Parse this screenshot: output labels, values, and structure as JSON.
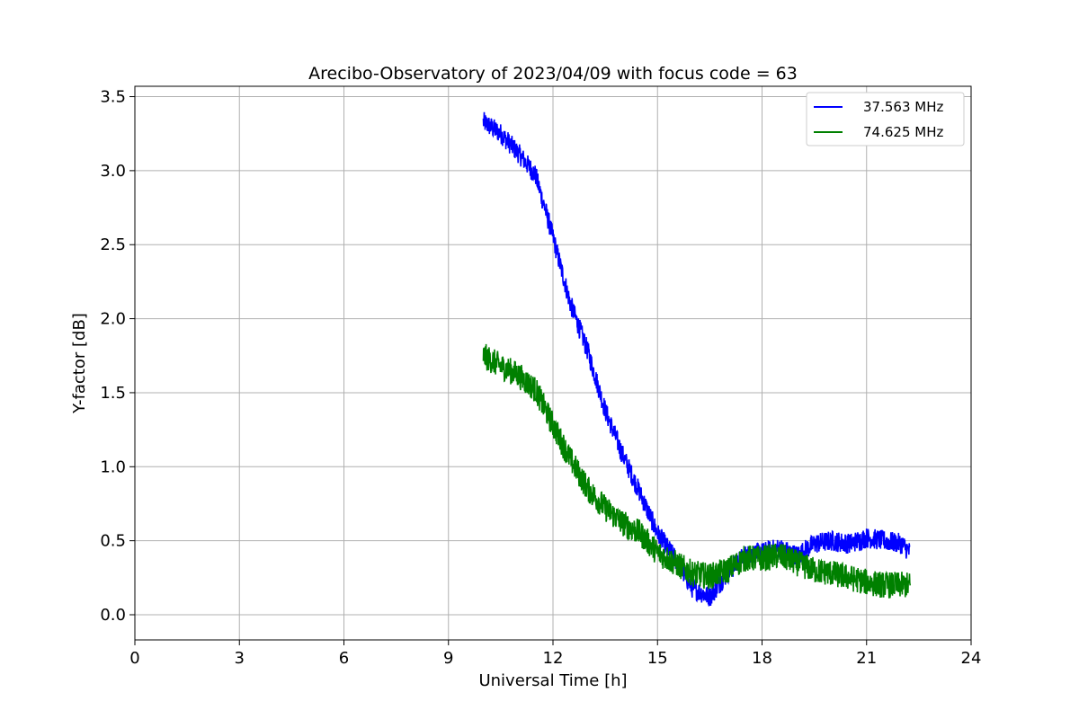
{
  "chart_data": {
    "type": "line",
    "title": "Arecibo-Observatory of 2023/04/09 with focus code = 63",
    "xlabel": "Universal Time [h]",
    "ylabel": "Y-factor [dB]",
    "xlim": [
      0,
      24
    ],
    "ylim": [
      -0.17,
      3.57
    ],
    "xticks": [
      0,
      3,
      6,
      9,
      12,
      15,
      18,
      21,
      24
    ],
    "xtick_labels": [
      "0",
      "3",
      "6",
      "9",
      "12",
      "15",
      "18",
      "21",
      "24"
    ],
    "yticks": [
      0.0,
      0.5,
      1.0,
      1.5,
      2.0,
      2.5,
      3.0,
      3.5
    ],
    "ytick_labels": [
      "0.0",
      "0.5",
      "1.0",
      "1.5",
      "2.0",
      "2.5",
      "3.0",
      "3.5"
    ],
    "grid": true,
    "legend_position": "top-right",
    "series": [
      {
        "name": "37.563 MHz",
        "color": "#0000ff",
        "x": [
          10.0,
          10.5,
          11.0,
          11.5,
          12.0,
          12.5,
          13.0,
          13.5,
          14.0,
          14.5,
          15.0,
          15.5,
          16.0,
          16.5,
          17.0,
          17.5,
          18.0,
          18.5,
          19.0,
          19.5,
          20.0,
          20.5,
          21.0,
          21.5,
          22.0,
          22.25
        ],
        "y": [
          3.33,
          3.25,
          3.12,
          2.97,
          2.55,
          2.1,
          1.78,
          1.38,
          1.08,
          0.82,
          0.55,
          0.38,
          0.18,
          0.12,
          0.28,
          0.4,
          0.42,
          0.45,
          0.4,
          0.48,
          0.5,
          0.48,
          0.52,
          0.5,
          0.48,
          0.42
        ],
        "noise": 0.07
      },
      {
        "name": "74.625 MHz",
        "color": "#008000",
        "x": [
          10.0,
          10.5,
          11.0,
          11.5,
          12.0,
          12.5,
          13.0,
          13.5,
          14.0,
          14.5,
          15.0,
          15.5,
          16.0,
          16.5,
          17.0,
          17.5,
          18.0,
          18.5,
          19.0,
          19.5,
          20.0,
          20.5,
          21.0,
          21.5,
          22.0,
          22.25
        ],
        "y": [
          1.75,
          1.68,
          1.62,
          1.52,
          1.28,
          1.05,
          0.85,
          0.72,
          0.62,
          0.55,
          0.42,
          0.35,
          0.28,
          0.26,
          0.3,
          0.38,
          0.38,
          0.4,
          0.35,
          0.3,
          0.28,
          0.25,
          0.22,
          0.2,
          0.2,
          0.2
        ],
        "noise": 0.09
      }
    ]
  }
}
